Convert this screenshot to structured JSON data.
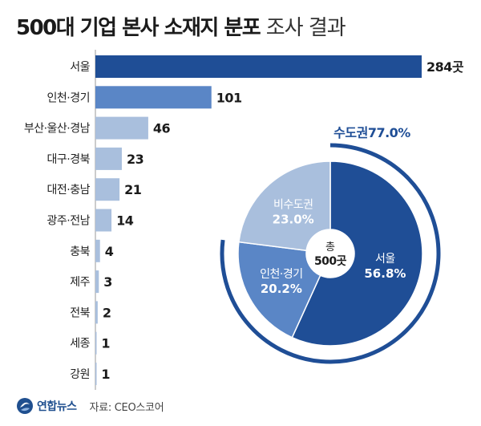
{
  "header": {
    "title_bold": "500대 기업 본사 소재지 분포",
    "title_light": "조사 결과"
  },
  "colors": {
    "dark": "#1f4e96",
    "mid": "#5a86c6",
    "light": "#a9bfdd",
    "axis": "#999999"
  },
  "chart_data": [
    {
      "type": "bar",
      "orientation": "horizontal",
      "categories": [
        "서울",
        "인천·경기",
        "부산·울산·경남",
        "대구·경북",
        "대전·충남",
        "광주·전남",
        "충북",
        "제주",
        "전북",
        "세종",
        "강원"
      ],
      "values": [
        284,
        101,
        46,
        23,
        21,
        14,
        4,
        3,
        2,
        1,
        1
      ],
      "unit": "곳",
      "value_labels": [
        "284곳",
        "101",
        "46",
        "23",
        "21",
        "14",
        "4",
        "3",
        "2",
        "1",
        "1"
      ],
      "color_index": [
        0,
        1,
        2,
        2,
        2,
        2,
        2,
        2,
        2,
        2,
        2
      ]
    },
    {
      "type": "pie",
      "variant": "donut",
      "slices": [
        {
          "label": "서울",
          "value": 56.8,
          "value_label": "56.8%",
          "color_index": 0
        },
        {
          "label": "인천·경기",
          "value": 20.2,
          "value_label": "20.2%",
          "color_index": 1
        },
        {
          "label": "비수도권",
          "value": 23.0,
          "value_label": "23.0%",
          "color_index": 2
        }
      ],
      "center_label_1": "총",
      "center_label_2": "500곳",
      "arc_label": "수도권77.0%",
      "arc_value": 77.0
    }
  ],
  "footer": {
    "logo_text": "연합뉴스",
    "source": "자료: CEO스코어"
  }
}
